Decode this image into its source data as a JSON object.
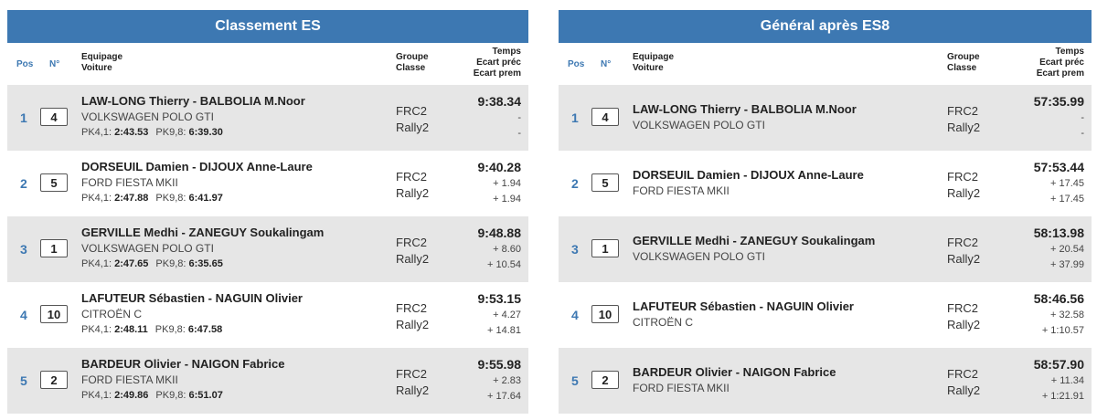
{
  "stage": {
    "title": "Classement ES",
    "headers": {
      "pos": "Pos",
      "num": "N°",
      "equip1": "Equipage",
      "equip2": "Voiture",
      "grp1": "Groupe",
      "grp2": "Classe",
      "time1": "Temps",
      "time2": "Ecart préc",
      "time3": "Ecart prem"
    },
    "rows": [
      {
        "pos": "1",
        "num": "4",
        "crew": "LAW-LONG Thierry - BALBOLIA M.Noor",
        "car": "VOLKSWAGEN POLO GTI",
        "pk1_label": "PK4,1:",
        "pk1": "2:43.53",
        "pk2_label": "PK9,8:",
        "pk2": "6:39.30",
        "group": "FRC2",
        "class": "Rally2",
        "time": "9:38.34",
        "gap_prev": "-",
        "gap_first": "-"
      },
      {
        "pos": "2",
        "num": "5",
        "crew": "DORSEUIL Damien - DIJOUX Anne-Laure",
        "car": "FORD FIESTA MKII",
        "pk1_label": "PK4,1:",
        "pk1": "2:47.88",
        "pk2_label": "PK9,8:",
        "pk2": "6:41.97",
        "group": "FRC2",
        "class": "Rally2",
        "time": "9:40.28",
        "gap_prev": "+ 1.94",
        "gap_first": "+ 1.94"
      },
      {
        "pos": "3",
        "num": "1",
        "crew": "GERVILLE Medhi - ZANEGUY Soukalingam",
        "car": "VOLKSWAGEN POLO GTI",
        "pk1_label": "PK4,1:",
        "pk1": "2:47.65",
        "pk2_label": "PK9,8:",
        "pk2": "6:35.65",
        "group": "FRC2",
        "class": "Rally2",
        "time": "9:48.88",
        "gap_prev": "+ 8.60",
        "gap_first": "+ 10.54"
      },
      {
        "pos": "4",
        "num": "10",
        "crew": "LAFUTEUR Sébastien - NAGUIN Olivier",
        "car": "CITROËN C",
        "pk1_label": "PK4,1:",
        "pk1": "2:48.11",
        "pk2_label": "PK9,8:",
        "pk2": "6:47.58",
        "group": "FRC2",
        "class": "Rally2",
        "time": "9:53.15",
        "gap_prev": "+ 4.27",
        "gap_first": "+ 14.81"
      },
      {
        "pos": "5",
        "num": "2",
        "crew": "BARDEUR Olivier - NAIGON Fabrice",
        "car": "FORD FIESTA MKII",
        "pk1_label": "PK4,1:",
        "pk1": "2:49.86",
        "pk2_label": "PK9,8:",
        "pk2": "6:51.07",
        "group": "FRC2",
        "class": "Rally2",
        "time": "9:55.98",
        "gap_prev": "+ 2.83",
        "gap_first": "+ 17.64"
      }
    ]
  },
  "overall": {
    "title": "Général après ES8",
    "headers": {
      "pos": "Pos",
      "num": "N°",
      "equip1": "Equipage",
      "equip2": "Voiture",
      "grp1": "Groupe",
      "grp2": "Classe",
      "time1": "Temps",
      "time2": "Ecart préc",
      "time3": "Ecart prem"
    },
    "rows": [
      {
        "pos": "1",
        "num": "4",
        "crew": "LAW-LONG Thierry - BALBOLIA M.Noor",
        "car": "VOLKSWAGEN POLO GTI",
        "group": "FRC2",
        "class": "Rally2",
        "time": "57:35.99",
        "gap_prev": "-",
        "gap_first": "-"
      },
      {
        "pos": "2",
        "num": "5",
        "crew": "DORSEUIL Damien - DIJOUX Anne-Laure",
        "car": "FORD FIESTA MKII",
        "group": "FRC2",
        "class": "Rally2",
        "time": "57:53.44",
        "gap_prev": "+ 17.45",
        "gap_first": "+ 17.45"
      },
      {
        "pos": "3",
        "num": "1",
        "crew": "GERVILLE Medhi - ZANEGUY Soukalingam",
        "car": "VOLKSWAGEN POLO GTI",
        "group": "FRC2",
        "class": "Rally2",
        "time": "58:13.98",
        "gap_prev": "+ 20.54",
        "gap_first": "+ 37.99"
      },
      {
        "pos": "4",
        "num": "10",
        "crew": "LAFUTEUR Sébastien - NAGUIN Olivier",
        "car": "CITROËN C",
        "group": "FRC2",
        "class": "Rally2",
        "time": "58:46.56",
        "gap_prev": "+ 32.58",
        "gap_first": "+ 1:10.57"
      },
      {
        "pos": "5",
        "num": "2",
        "crew": "BARDEUR Olivier - NAIGON Fabrice",
        "car": "FORD FIESTA MKII",
        "group": "FRC2",
        "class": "Rally2",
        "time": "58:57.90",
        "gap_prev": "+ 11.34",
        "gap_first": "+ 1:21.91"
      }
    ]
  }
}
